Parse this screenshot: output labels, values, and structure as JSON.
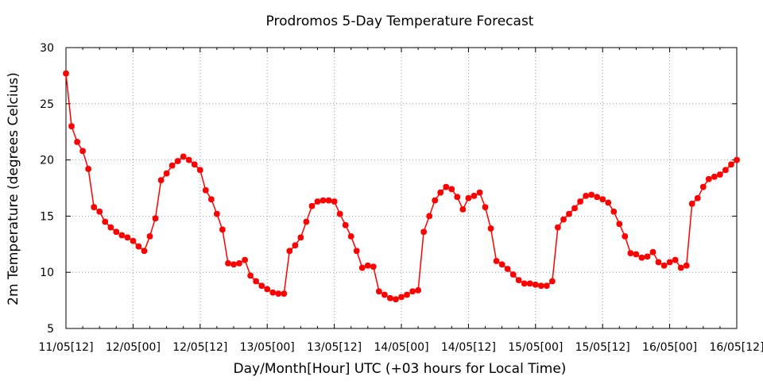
{
  "chart_data": {
    "type": "line",
    "title": "Prodromos 5-Day Temperature Forecast",
    "xlabel": "Day/Month[Hour] UTC (+03 hours for Local Time)",
    "ylabel": "2m Temperature (degrees Celcius)",
    "ylim": [
      5,
      30
    ],
    "yticks": [
      5,
      10,
      15,
      20,
      25,
      30
    ],
    "xlim": [
      0,
      120
    ],
    "xticks": [
      {
        "pos": 0,
        "label": "11/05[12]"
      },
      {
        "pos": 12,
        "label": "12/05[00]"
      },
      {
        "pos": 24,
        "label": "12/05[12]"
      },
      {
        "pos": 36,
        "label": "13/05[00]"
      },
      {
        "pos": 48,
        "label": "13/05[12]"
      },
      {
        "pos": 60,
        "label": "14/05[00]"
      },
      {
        "pos": 72,
        "label": "14/05[12]"
      },
      {
        "pos": 84,
        "label": "15/05[00]"
      },
      {
        "pos": 96,
        "label": "15/05[12]"
      },
      {
        "pos": 108,
        "label": "16/05[00]"
      },
      {
        "pos": 120,
        "label": "16/05[12]"
      }
    ],
    "grid": true,
    "color": "#ff0000",
    "series": [
      {
        "x": [
          0,
          1,
          2,
          3,
          4,
          5,
          6,
          7,
          8,
          9,
          10,
          11,
          12,
          13,
          14,
          15,
          16,
          17,
          18,
          19,
          20,
          21,
          22,
          23,
          24,
          25,
          26,
          27,
          28,
          29,
          30,
          31,
          32,
          33,
          34,
          35,
          36,
          37,
          38,
          39,
          40,
          41,
          42,
          43,
          44,
          45,
          46,
          47,
          48,
          49,
          50,
          51,
          52,
          53,
          54,
          55,
          56,
          57,
          58,
          59,
          60,
          61,
          62,
          63,
          64,
          65,
          66,
          67,
          68,
          69,
          70,
          71,
          72,
          73,
          74,
          75,
          76,
          77,
          78,
          79,
          80,
          81,
          82,
          83,
          84,
          85,
          86,
          87,
          88,
          89,
          90,
          91,
          92,
          93,
          94,
          95,
          96,
          97,
          98,
          99,
          100,
          101,
          102,
          103,
          104,
          105,
          106,
          107,
          108,
          109,
          110,
          111,
          112,
          113,
          114,
          115,
          116,
          117,
          118,
          119,
          120
        ],
        "values": [
          27.7,
          23.0,
          21.6,
          20.8,
          19.2,
          15.8,
          15.4,
          14.5,
          14.0,
          13.6,
          13.3,
          13.1,
          12.8,
          12.3,
          11.9,
          13.2,
          14.8,
          18.2,
          18.8,
          19.5,
          19.9,
          20.3,
          20.0,
          19.6,
          19.1,
          17.3,
          16.5,
          15.2,
          13.8,
          10.8,
          10.7,
          10.8,
          11.1,
          9.7,
          9.2,
          8.8,
          8.5,
          8.2,
          8.1,
          8.1,
          11.9,
          12.4,
          13.1,
          14.5,
          15.9,
          16.3,
          16.4,
          16.4,
          16.3,
          15.2,
          14.2,
          13.2,
          11.9,
          10.4,
          10.6,
          10.5,
          8.3,
          8.0,
          7.7,
          7.6,
          7.8,
          8.0,
          8.3,
          8.4,
          13.6,
          15.0,
          16.4,
          17.1,
          17.6,
          17.4,
          16.7,
          15.6,
          16.6,
          16.8,
          17.1,
          15.8,
          13.9,
          11.0,
          10.7,
          10.3,
          9.8,
          9.3,
          9.0,
          9.0,
          8.9,
          8.8,
          8.8,
          9.2,
          14.0,
          14.7,
          15.2,
          15.7,
          16.3,
          16.8,
          16.9,
          16.7,
          16.5,
          16.2,
          15.4,
          14.3,
          13.2,
          11.7,
          11.6,
          11.3,
          11.4,
          11.8,
          10.9,
          10.6,
          10.9,
          11.1,
          10.4,
          10.6,
          16.1,
          16.6,
          17.6,
          18.3,
          18.5,
          18.7,
          19.1,
          19.6,
          20.0
        ]
      }
    ]
  }
}
